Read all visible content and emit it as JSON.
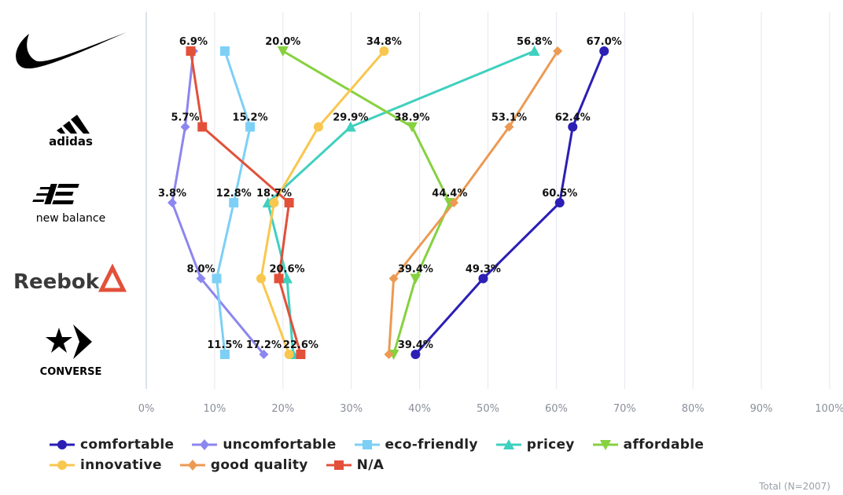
{
  "colors": {
    "comfortable": "#2b1fb5",
    "uncomfortable": "#8c86ef",
    "eco-friendly": "#7dd0f5",
    "pricey": "#3fd0bf",
    "affordable": "#86d13f",
    "innovative": "#f9c74f",
    "good quality": "#ec9a53",
    "N/A": "#e2503a"
  },
  "brands": [
    {
      "name": "Nike",
      "logo": "nike-swoosh"
    },
    {
      "name": "adidas",
      "logo": "adidas-logo"
    },
    {
      "name": "new balance",
      "logo": "new-balance-logo"
    },
    {
      "name": "Reebok",
      "logo": "reebok-logo"
    },
    {
      "name": "CONVERSE",
      "logo": "converse-logo"
    }
  ],
  "footer": {
    "total": "Total (N=2007)"
  },
  "chart_data": {
    "type": "line",
    "orientation": "horizontal",
    "categories": [
      "Nike",
      "adidas",
      "new balance",
      "Reebok",
      "Converse"
    ],
    "xlim": [
      0,
      100
    ],
    "xticks": [
      "0%",
      "10%",
      "20%",
      "30%",
      "40%",
      "50%",
      "60%",
      "70%",
      "80%",
      "90%",
      "100%"
    ],
    "grid": "vertical",
    "legend_position": "bottom",
    "series": [
      {
        "name": "comfortable",
        "marker": "circle",
        "values": [
          67.0,
          62.4,
          60.5,
          49.3,
          39.4
        ]
      },
      {
        "name": "uncomfortable",
        "marker": "diamond",
        "values": [
          6.9,
          5.7,
          3.8,
          8.0,
          17.2
        ]
      },
      {
        "name": "eco-friendly",
        "marker": "square",
        "values": [
          11.5,
          15.2,
          12.8,
          10.3,
          11.5
        ]
      },
      {
        "name": "pricey",
        "marker": "triangle-up",
        "values": [
          56.8,
          29.9,
          17.8,
          20.6,
          21.5
        ]
      },
      {
        "name": "affordable",
        "marker": "triangle-down",
        "values": [
          20.0,
          38.9,
          44.4,
          39.4,
          36.2
        ]
      },
      {
        "name": "innovative",
        "marker": "circle",
        "values": [
          34.8,
          25.2,
          18.7,
          16.8,
          20.9
        ]
      },
      {
        "name": "good quality",
        "marker": "diamond",
        "values": [
          60.2,
          53.1,
          45.0,
          36.2,
          35.5
        ]
      },
      {
        "name": "N/A",
        "marker": "square",
        "values": [
          6.5,
          8.2,
          20.9,
          19.4,
          22.6
        ]
      }
    ],
    "data_labels": [
      {
        "category": "Nike",
        "series": "uncomfortable",
        "text": "6.9%"
      },
      {
        "category": "Nike",
        "series": "affordable",
        "text": "20.0%"
      },
      {
        "category": "Nike",
        "series": "innovative",
        "text": "34.8%"
      },
      {
        "category": "Nike",
        "series": "pricey",
        "text": "56.8%"
      },
      {
        "category": "Nike",
        "series": "comfortable",
        "text": "67.0%"
      },
      {
        "category": "adidas",
        "series": "uncomfortable",
        "text": "5.7%"
      },
      {
        "category": "adidas",
        "series": "eco-friendly",
        "text": "15.2%"
      },
      {
        "category": "adidas",
        "series": "pricey",
        "text": "29.9%"
      },
      {
        "category": "adidas",
        "series": "affordable",
        "text": "38.9%"
      },
      {
        "category": "adidas",
        "series": "good quality",
        "text": "53.1%"
      },
      {
        "category": "adidas",
        "series": "comfortable",
        "text": "62.4%"
      },
      {
        "category": "new balance",
        "series": "uncomfortable",
        "text": "3.8%"
      },
      {
        "category": "new balance",
        "series": "eco-friendly",
        "text": "12.8%"
      },
      {
        "category": "new balance",
        "series": "innovative",
        "text": "18.7%"
      },
      {
        "category": "new balance",
        "series": "affordable",
        "text": "44.4%"
      },
      {
        "category": "new balance",
        "series": "comfortable",
        "text": "60.5%"
      },
      {
        "category": "Reebok",
        "series": "uncomfortable",
        "text": "8.0%"
      },
      {
        "category": "Reebok",
        "series": "pricey",
        "text": "20.6%"
      },
      {
        "category": "Reebok",
        "series": "affordable",
        "text": "39.4%"
      },
      {
        "category": "Reebok",
        "series": "comfortable",
        "text": "49.3%"
      },
      {
        "category": "Converse",
        "series": "eco-friendly",
        "text": "11.5%"
      },
      {
        "category": "Converse",
        "series": "uncomfortable",
        "text": "17.2%"
      },
      {
        "category": "Converse",
        "series": "N/A",
        "text": "22.6%"
      },
      {
        "category": "Converse",
        "series": "comfortable",
        "text": "39.4%"
      }
    ]
  }
}
